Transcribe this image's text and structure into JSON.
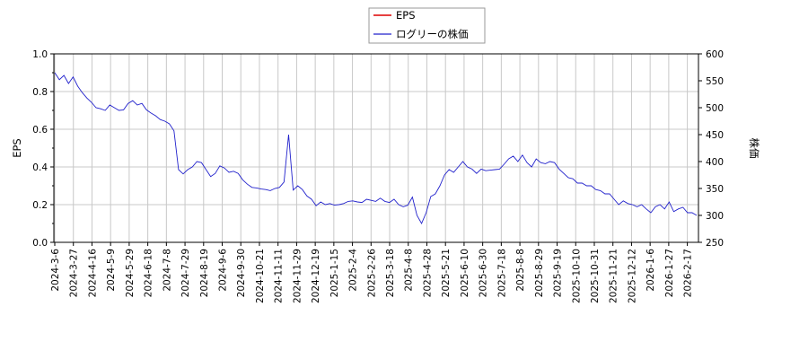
{
  "chart_data": {
    "type": "line",
    "x_ticks": [
      "2024-3-6",
      "2024-3-27",
      "2024-4-16",
      "2024-5-9",
      "2024-5-29",
      "2024-6-18",
      "2024-7-8",
      "2024-7-29",
      "2024-8-19",
      "2024-9-6",
      "2024-9-30",
      "2024-10-21",
      "2024-11-11",
      "2024-11-29",
      "2024-12-19",
      "2025-1-15",
      "2025-2-4",
      "2025-2-26",
      "2025-3-18",
      "2025-4-8",
      "2025-4-28",
      "2025-5-21",
      "2025-6-10",
      "2025-6-30",
      "2025-7-18",
      "2025-8-8",
      "2025-8-29",
      "2025-9-19",
      "2025-10-10",
      "2025-10-31",
      "2025-11-21",
      "2025-12-12",
      "2026-1-6",
      "2026-1-27",
      "2026-2-17"
    ],
    "y_left": {
      "label": "EPS",
      "range": [
        0,
        1.0
      ],
      "ticks": [
        "0.0",
        "0.2",
        "0.4",
        "0.6",
        "0.8",
        "1.0"
      ]
    },
    "y_right": {
      "label": "株価",
      "range": [
        250,
        600
      ],
      "ticks": [
        "250",
        "300",
        "350",
        "400",
        "450",
        "500",
        "550",
        "600"
      ]
    },
    "grid": true,
    "legend_position": "top-center",
    "series": [
      {
        "name": "EPS",
        "axis": "left",
        "color": "#dd0000",
        "values": []
      },
      {
        "name": "ログリーの株価",
        "axis": "right",
        "color": "#2222cc",
        "values": [
          565,
          552,
          560,
          545,
          557,
          540,
          528,
          518,
          510,
          500,
          498,
          495,
          505,
          500,
          495,
          496,
          508,
          513,
          505,
          508,
          496,
          490,
          485,
          478,
          475,
          470,
          457,
          385,
          377,
          385,
          390,
          400,
          398,
          385,
          372,
          378,
          392,
          388,
          380,
          382,
          378,
          366,
          358,
          352,
          351,
          349,
          348,
          346,
          350,
          352,
          362,
          450,
          347,
          355,
          348,
          336,
          330,
          318,
          325,
          320,
          322,
          319,
          320,
          322,
          326,
          327,
          325,
          324,
          330,
          328,
          326,
          332,
          326,
          324,
          330,
          320,
          316,
          319,
          334,
          300,
          285,
          305,
          335,
          340,
          355,
          375,
          385,
          380,
          390,
          400,
          390,
          386,
          378,
          386,
          383,
          384,
          385,
          386,
          395,
          405,
          410,
          400,
          412,
          398,
          390,
          405,
          398,
          396,
          400,
          398,
          386,
          378,
          370,
          368,
          360,
          360,
          355,
          355,
          348,
          346,
          340,
          340,
          330,
          320,
          327,
          322,
          320,
          316,
          320,
          312,
          305,
          316,
          320,
          312,
          325,
          307,
          312,
          315,
          305,
          305,
          300
        ]
      }
    ]
  }
}
